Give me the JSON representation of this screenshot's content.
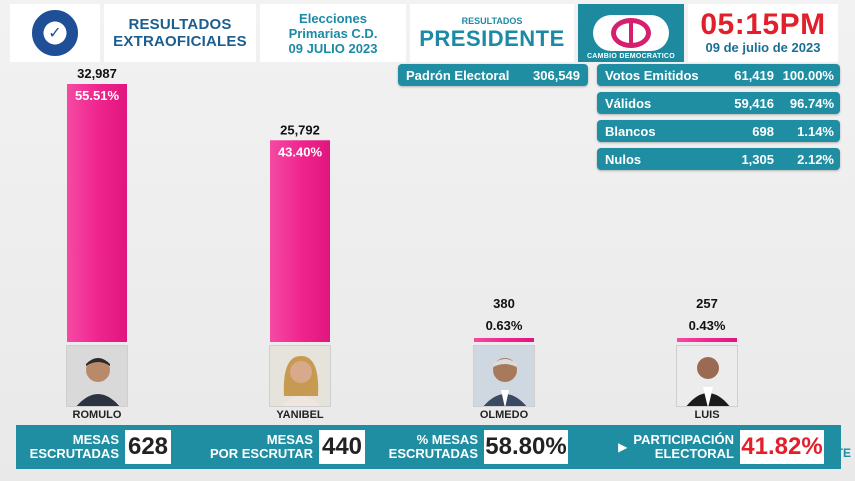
{
  "header": {
    "seal_text": "✓",
    "resultados_line1": "RESULTADOS",
    "resultados_line2": "EXTRAOFICIALES",
    "elecciones_line1": "Elecciones",
    "elecciones_line2": "Primarias C.D.",
    "elecciones_line3": "09 JULIO 2023",
    "resultados_small": "RESULTADOS",
    "resultados_big": "PRESIDENTE",
    "party_name": "CAMBIO DEMOCRATICO",
    "time": "05:15PM",
    "date": "09 de julio de 2023"
  },
  "stats": {
    "padron": {
      "label": "Padrón Electoral",
      "value": "306,549"
    },
    "votos_emitidos": {
      "label": "Votos Emitidos",
      "value": "61,419",
      "pct": "100.00%"
    },
    "validos": {
      "label": "Válidos",
      "value": "59,416",
      "pct": "96.74%"
    },
    "blancos": {
      "label": "Blancos",
      "value": "698",
      "pct": "1.14%"
    },
    "nulos": {
      "label": "Nulos",
      "value": "1,305",
      "pct": "2.12%"
    }
  },
  "chart_data": {
    "type": "bar",
    "categories": [
      "ROMULO",
      "YANIBEL",
      "OLMEDO",
      "LUIS"
    ],
    "values": [
      32987,
      25792,
      380,
      257
    ],
    "value_labels": [
      "32,987",
      "25,792",
      "380",
      "257"
    ],
    "percent_labels": [
      "55.51%",
      "43.40%",
      "0.63%",
      "0.43%"
    ],
    "percents": [
      55.51,
      43.4,
      0.63,
      0.43
    ],
    "bar_color": "#f0268f",
    "ylim": [
      0,
      32987
    ]
  },
  "footer": {
    "mesas_escrutadas_l1": "MESAS",
    "mesas_escrutadas_l2": "ESCRUTADAS",
    "mesas_escrutadas_value": "628",
    "por_escrutar_l1": "MESAS",
    "por_escrutar_l2": "POR ESCRUTAR",
    "por_escrutar_value": "440",
    "pct_mesas_l1": "% MESAS",
    "pct_mesas_l2": "ESCRUTADAS",
    "pct_mesas_value": "58.80%",
    "participacion_l1": "PARTICIPACIÓN",
    "participacion_l2": "ELECTORAL",
    "participacion_value": "41.82%",
    "channel_logo": "TE"
  },
  "colors": {
    "teal": "#1f8ea3",
    "magenta": "#f0268f",
    "red": "#e2202b"
  }
}
